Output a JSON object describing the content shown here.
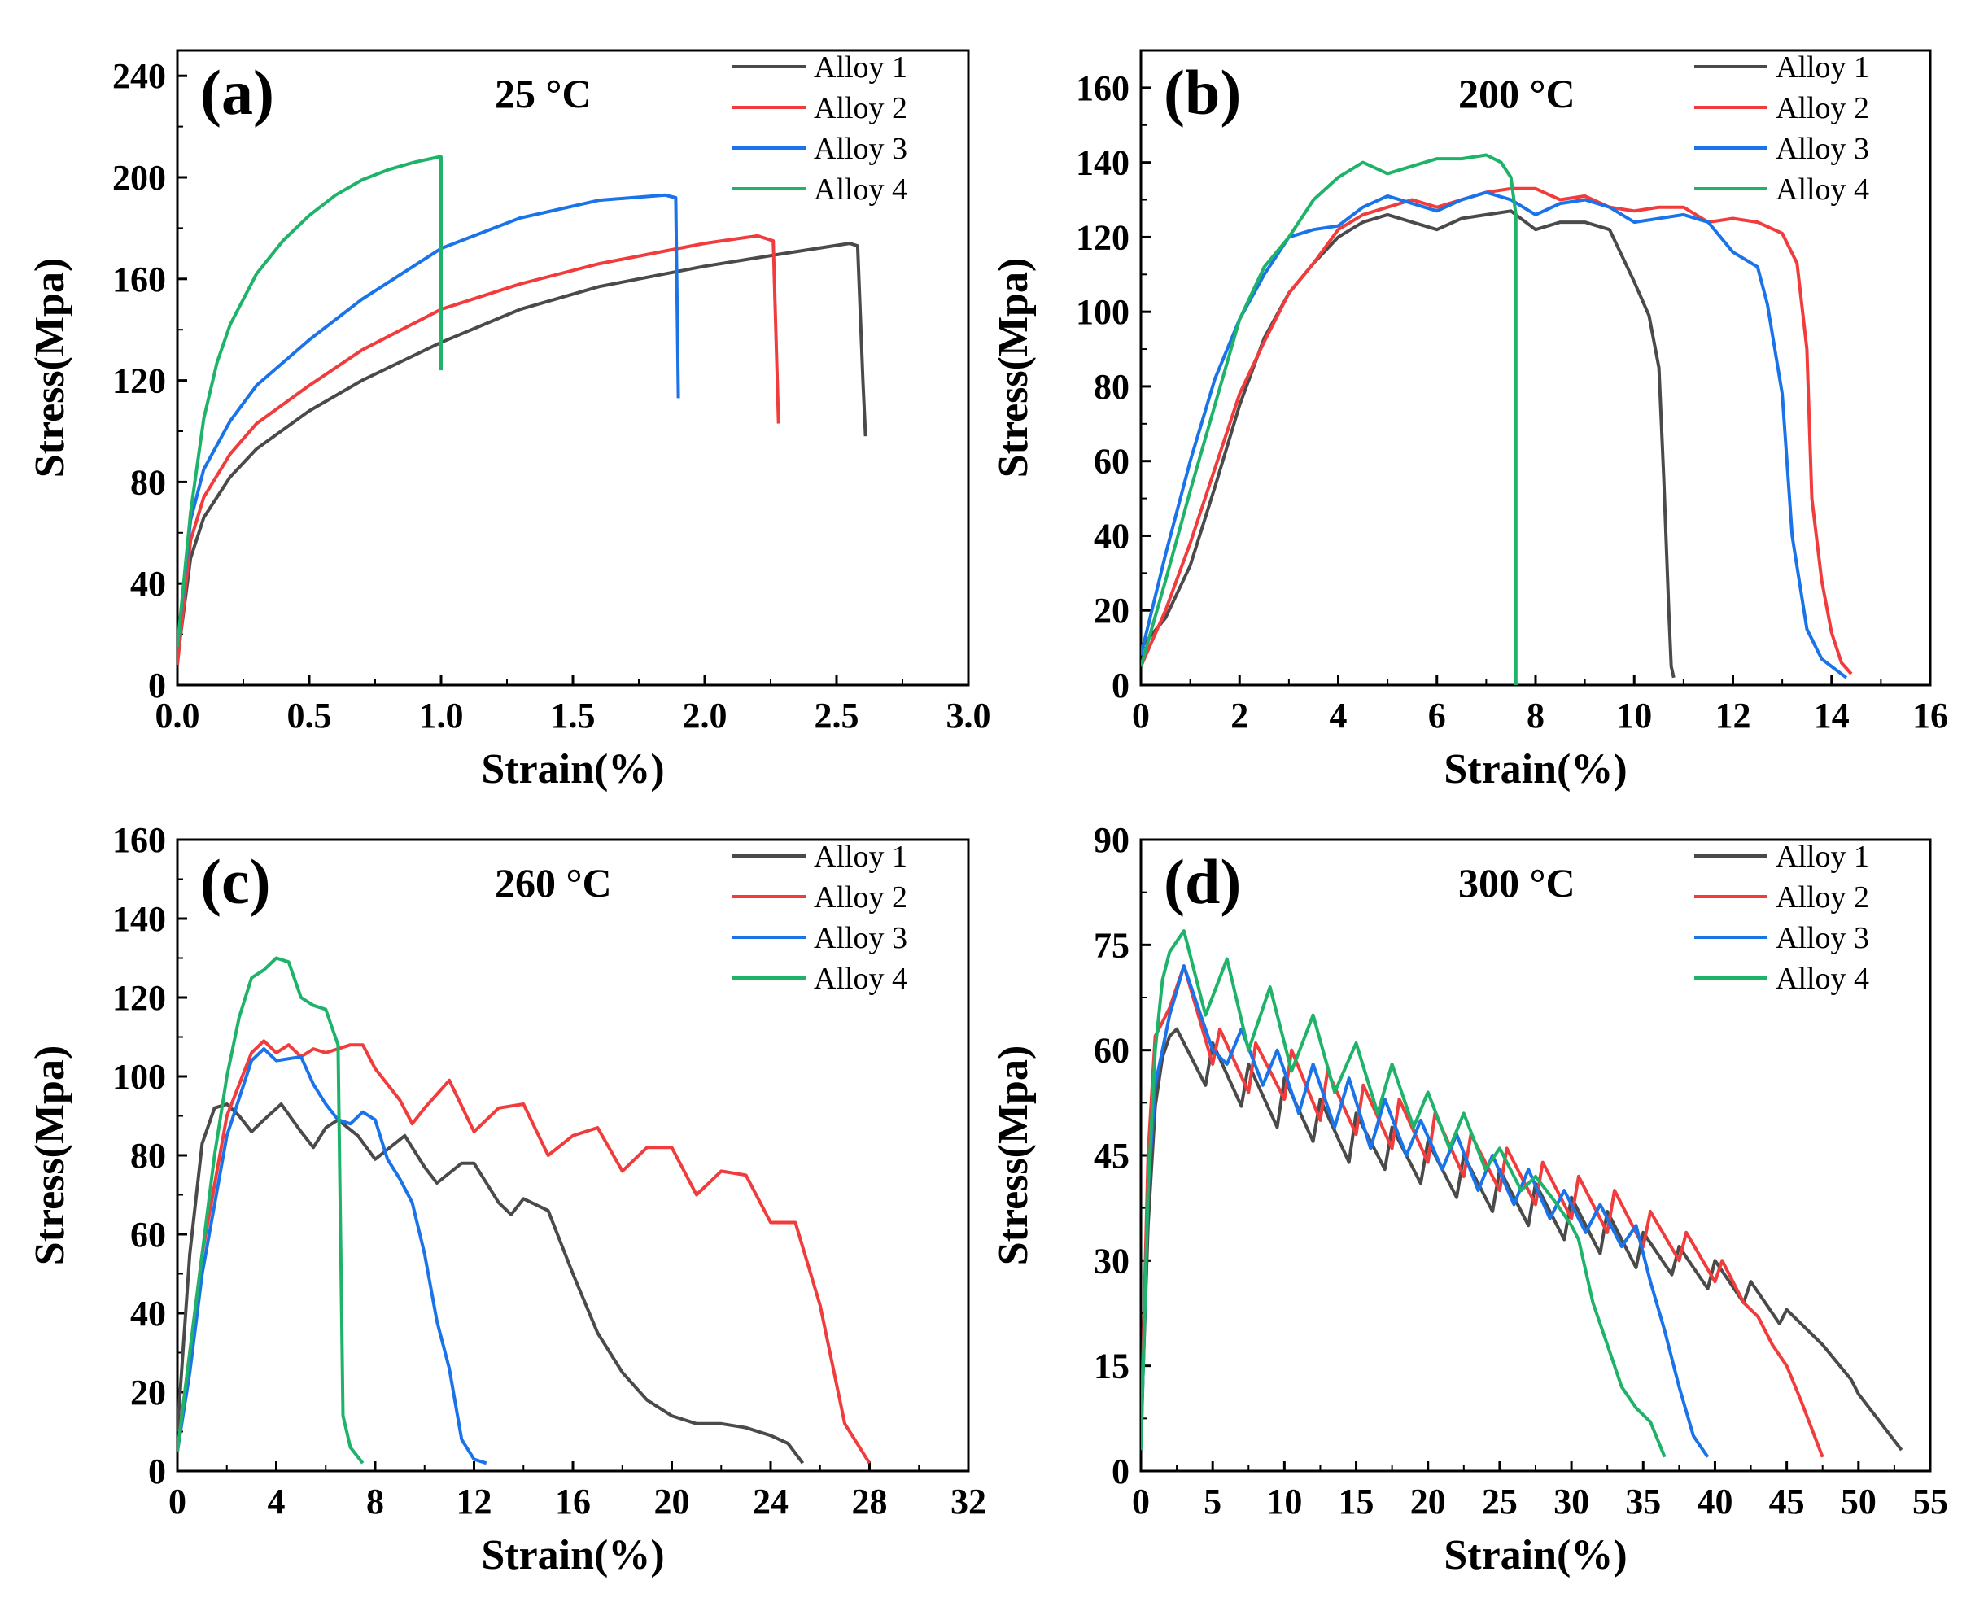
{
  "colors": {
    "Alloy 1": "#4a4a4a",
    "Alloy 2": "#f03c3c",
    "Alloy 3": "#1a73e8",
    "Alloy 4": "#1fb36a"
  },
  "chart_data": [
    {
      "type": "line",
      "panel_label": "(a)",
      "temperature": "25 °C",
      "xlabel": "Strain(%)",
      "ylabel": "Stress(Mpa)",
      "xlim": [
        0,
        3.0
      ],
      "ylim": [
        0,
        250
      ],
      "xticks": [
        "0.0",
        "0.5",
        "1.0",
        "1.5",
        "2.0",
        "2.5",
        "3.0"
      ],
      "yticks": [
        "0",
        "40",
        "80",
        "120",
        "160",
        "200",
        "240"
      ],
      "legend": "top-right",
      "series": [
        {
          "name": "Alloy 1",
          "x": [
            0,
            0.05,
            0.1,
            0.2,
            0.3,
            0.5,
            0.7,
            1.0,
            1.3,
            1.6,
            2.0,
            2.3,
            2.55,
            2.58,
            2.6,
            2.61
          ],
          "y": [
            10,
            50,
            66,
            82,
            93,
            108,
            120,
            135,
            148,
            157,
            165,
            170,
            174,
            173,
            120,
            98
          ]
        },
        {
          "name": "Alloy 2",
          "x": [
            0,
            0.05,
            0.1,
            0.2,
            0.3,
            0.5,
            0.7,
            1.0,
            1.3,
            1.6,
            2.0,
            2.2,
            2.26,
            2.28
          ],
          "y": [
            8,
            57,
            74,
            91,
            103,
            118,
            132,
            148,
            158,
            166,
            174,
            177,
            175,
            103
          ]
        },
        {
          "name": "Alloy 3",
          "x": [
            0,
            0.05,
            0.1,
            0.2,
            0.3,
            0.5,
            0.7,
            1.0,
            1.3,
            1.6,
            1.85,
            1.89,
            1.9
          ],
          "y": [
            15,
            65,
            85,
            104,
            118,
            136,
            152,
            172,
            184,
            191,
            193,
            192,
            113
          ]
        },
        {
          "name": "Alloy 4",
          "x": [
            0,
            0.05,
            0.1,
            0.15,
            0.2,
            0.3,
            0.4,
            0.5,
            0.6,
            0.7,
            0.8,
            0.9,
            0.99,
            1.0,
            1.0
          ],
          "y": [
            15,
            68,
            105,
            127,
            142,
            162,
            175,
            185,
            193,
            199,
            203,
            206,
            208,
            208,
            124
          ]
        }
      ]
    },
    {
      "type": "line",
      "panel_label": "(b)",
      "temperature": "200 °C",
      "xlabel": "Strain(%)",
      "ylabel": "Stress(Mpa)",
      "xlim": [
        0,
        16
      ],
      "ylim": [
        0,
        170
      ],
      "xticks": [
        "0",
        "2",
        "4",
        "6",
        "8",
        "10",
        "12",
        "14",
        "16"
      ],
      "yticks": [
        "0",
        "20",
        "40",
        "60",
        "80",
        "100",
        "120",
        "140",
        "160"
      ],
      "legend": "top-right",
      "series": [
        {
          "name": "Alloy 1",
          "x": [
            0,
            0.5,
            1.0,
            1.5,
            2,
            2.5,
            3,
            3.5,
            4,
            4.5,
            5,
            5.5,
            6,
            6.5,
            7,
            7.5,
            8,
            8.5,
            9,
            9.5,
            10,
            10.3,
            10.5,
            10.6,
            10.7,
            10.75,
            10.8
          ],
          "y": [
            10,
            18,
            32,
            53,
            75,
            93,
            105,
            113,
            120,
            124,
            126,
            124,
            122,
            125,
            126,
            127,
            122,
            124,
            124,
            122,
            108,
            99,
            85,
            55,
            20,
            5,
            2
          ]
        },
        {
          "name": "Alloy 2",
          "x": [
            0,
            0.5,
            1,
            1.5,
            2,
            2.5,
            3,
            3.5,
            4,
            4.5,
            5,
            5.5,
            6,
            7,
            7.5,
            8,
            8.5,
            9,
            9.5,
            10,
            10.5,
            11,
            11.5,
            12,
            12.5,
            13,
            13.3,
            13.5,
            13.6,
            13.8,
            14.0,
            14.2,
            14.4
          ],
          "y": [
            5,
            20,
            38,
            58,
            78,
            92,
            105,
            113,
            122,
            126,
            128,
            130,
            128,
            132,
            133,
            133,
            130,
            131,
            128,
            127,
            128,
            128,
            124,
            125,
            124,
            121,
            113,
            90,
            50,
            28,
            14,
            6,
            3
          ]
        },
        {
          "name": "Alloy 3",
          "x": [
            0,
            0.5,
            1,
            1.5,
            2,
            2.5,
            3,
            3.5,
            4,
            4.5,
            5,
            5.5,
            6,
            6.5,
            7,
            7.5,
            8,
            8.5,
            9,
            9.5,
            10,
            11,
            11.5,
            12,
            12.5,
            12.7,
            13.0,
            13.2,
            13.5,
            13.8,
            14.3
          ],
          "y": [
            8,
            35,
            60,
            82,
            98,
            110,
            120,
            122,
            123,
            128,
            131,
            129,
            127,
            130,
            132,
            130,
            126,
            129,
            130,
            128,
            124,
            126,
            124,
            116,
            112,
            102,
            78,
            40,
            15,
            7,
            2
          ]
        },
        {
          "name": "Alloy 4",
          "x": [
            0,
            0.5,
            1,
            1.5,
            2,
            2.5,
            3,
            3.5,
            4,
            4.5,
            5,
            5.5,
            6,
            6.5,
            7,
            7.3,
            7.5,
            7.6,
            7.6
          ],
          "y": [
            5,
            28,
            52,
            75,
            98,
            112,
            120,
            130,
            136,
            140,
            137,
            139,
            141,
            141,
            142,
            140,
            136,
            126,
            0
          ]
        }
      ]
    },
    {
      "type": "line",
      "panel_label": "(c)",
      "temperature": "260 °C",
      "xlabel": "Strain(%)",
      "ylabel": "Stress(Mpa)",
      "xlim": [
        0,
        32
      ],
      "ylim": [
        0,
        160
      ],
      "xticks": [
        "0",
        "4",
        "8",
        "12",
        "16",
        "20",
        "24",
        "28",
        "32"
      ],
      "yticks": [
        "0",
        "20",
        "40",
        "60",
        "80",
        "100",
        "120",
        "140",
        "160"
      ],
      "legend": "top-right",
      "series": [
        {
          "name": "Alloy 1",
          "x": [
            0,
            0.5,
            1,
            1.5,
            2,
            2.5,
            3,
            3.5,
            4.2,
            5,
            5.5,
            6,
            6.5,
            7.3,
            8,
            9.2,
            10,
            10.5,
            11.5,
            12,
            13,
            13.5,
            14,
            15,
            16,
            17,
            18,
            19,
            20,
            21,
            22,
            23,
            24,
            24.7,
            25.3
          ],
          "y": [
            10,
            55,
            83,
            92,
            93,
            90,
            86,
            89,
            93,
            86,
            82,
            87,
            89,
            85,
            79,
            85,
            77,
            73,
            78,
            78,
            68,
            65,
            69,
            66,
            50,
            35,
            25,
            18,
            14,
            12,
            12,
            11,
            9,
            7,
            2
          ]
        },
        {
          "name": "Alloy 2",
          "x": [
            0,
            0.5,
            1,
            2,
            3,
            3.5,
            4,
            4.5,
            5,
            5.5,
            6,
            7,
            7.5,
            8,
            9,
            9.5,
            10,
            11,
            12,
            13,
            14,
            15,
            16,
            17,
            18,
            19,
            20,
            21,
            22,
            23,
            24,
            25,
            26,
            27,
            28
          ],
          "y": [
            5,
            30,
            55,
            90,
            106,
            109,
            106,
            108,
            105,
            107,
            106,
            108,
            108,
            102,
            94,
            88,
            92,
            99,
            86,
            92,
            93,
            80,
            85,
            87,
            76,
            82,
            82,
            70,
            76,
            75,
            63,
            63,
            42,
            12,
            2
          ]
        },
        {
          "name": "Alloy 3",
          "x": [
            0,
            0.5,
            1,
            2,
            3,
            3.5,
            4,
            5,
            5.5,
            6,
            6.5,
            7,
            7.5,
            8,
            8.5,
            9,
            9.5,
            10,
            10.5,
            11,
            11.5,
            12,
            12.5
          ],
          "y": [
            5,
            25,
            50,
            85,
            104,
            107,
            104,
            105,
            98,
            93,
            89,
            88,
            91,
            89,
            79,
            74,
            68,
            55,
            38,
            26,
            8,
            3,
            2
          ]
        },
        {
          "name": "Alloy 4",
          "x": [
            0,
            0.5,
            1,
            1.5,
            2,
            2.5,
            3,
            3.5,
            4,
            4.5,
            5,
            5.5,
            6,
            6.5,
            6.6,
            6.7,
            7,
            7.5
          ],
          "y": [
            5,
            30,
            55,
            80,
            100,
            115,
            125,
            127,
            130,
            129,
            120,
            118,
            117,
            108,
            60,
            14,
            6,
            2
          ]
        }
      ]
    },
    {
      "type": "line",
      "panel_label": "(d)",
      "temperature": "300 °C",
      "xlabel": "Strain(%)",
      "ylabel": "Stress(Mpa)",
      "xlim": [
        0,
        55
      ],
      "ylim": [
        0,
        90
      ],
      "xticks": [
        "0",
        "5",
        "10",
        "15",
        "20",
        "25",
        "30",
        "35",
        "40",
        "45",
        "50",
        "55"
      ],
      "yticks": [
        "0",
        "15",
        "30",
        "45",
        "60",
        "75",
        "90"
      ],
      "legend": "top-right",
      "series": [
        {
          "name": "Alloy 1",
          "x": [
            0,
            0.5,
            1,
            1.5,
            2,
            2.5,
            4.5,
            5,
            7,
            7.5,
            9.5,
            10,
            12,
            12.5,
            14.5,
            15,
            17,
            17.5,
            19.5,
            20,
            22,
            22.5,
            24.5,
            25,
            27,
            27.5,
            29.5,
            30,
            32,
            32.5,
            34.5,
            35,
            37,
            37.5,
            39.5,
            40,
            42,
            42.5,
            44.5,
            45,
            47,
            47.5,
            49.5,
            50,
            51.5,
            53
          ],
          "y": [
            5,
            35,
            52,
            59,
            62,
            63,
            55,
            61,
            52,
            58,
            49,
            56,
            47,
            53,
            44,
            51,
            43,
            49,
            41,
            47,
            39,
            45,
            37,
            43,
            35,
            41,
            33,
            39,
            31,
            37,
            29,
            34,
            28,
            32,
            26,
            30,
            24,
            27,
            21,
            23,
            19,
            18,
            13,
            11,
            7,
            3
          ]
        },
        {
          "name": "Alloy 2",
          "x": [
            0,
            0.5,
            1,
            1.5,
            2,
            3,
            5,
            5.5,
            7.5,
            8,
            10,
            10.5,
            12.5,
            13,
            15,
            15.5,
            17.5,
            18,
            20,
            20.5,
            22.5,
            23,
            25,
            25.5,
            27.5,
            28,
            30,
            30.5,
            32.5,
            33,
            35,
            35.5,
            37.5,
            38,
            40,
            40.5,
            42,
            43,
            44,
            45,
            46,
            47.5
          ],
          "y": [
            5,
            45,
            62,
            64,
            66,
            72,
            58,
            63,
            54,
            61,
            53,
            60,
            50,
            57,
            48,
            55,
            46,
            53,
            44,
            51,
            42,
            48,
            40,
            46,
            38,
            44,
            36,
            42,
            34,
            40,
            32,
            37,
            30,
            34,
            27,
            30,
            24,
            22,
            18,
            15,
            10,
            2
          ]
        },
        {
          "name": "Alloy 3",
          "x": [
            0,
            0.5,
            1,
            2,
            3,
            5,
            6,
            7,
            8.5,
            9.5,
            11,
            12,
            13.5,
            14.5,
            16,
            17,
            18.5,
            19.5,
            21,
            22,
            23.5,
            24.5,
            26,
            27,
            28.5,
            29.5,
            31,
            32,
            33.5,
            34.5,
            35.5,
            36.5,
            37.5,
            38.5,
            39.5
          ],
          "y": [
            3,
            40,
            55,
            65,
            72,
            60,
            58,
            63,
            55,
            60,
            51,
            58,
            49,
            56,
            46,
            53,
            45,
            50,
            43,
            48,
            40,
            45,
            38,
            43,
            36,
            40,
            34,
            38,
            32,
            35,
            27,
            20,
            12,
            5,
            2
          ]
        },
        {
          "name": "Alloy 4",
          "x": [
            0,
            0.5,
            1,
            1.5,
            2,
            3,
            4.5,
            6,
            7.5,
            9,
            10.5,
            12,
            13.5,
            15,
            16.5,
            17.5,
            19,
            20,
            21.5,
            22.5,
            24,
            25,
            26.5,
            27.5,
            29,
            30,
            30.5,
            31.5,
            32.5,
            33.5,
            34.5,
            35.5,
            36.5
          ],
          "y": [
            3,
            40,
            60,
            70,
            74,
            77,
            65,
            73,
            60,
            69,
            57,
            65,
            54,
            61,
            51,
            58,
            49,
            54,
            46,
            51,
            43,
            46,
            40,
            42,
            38,
            35,
            33,
            24,
            18,
            12,
            9,
            7,
            2
          ]
        }
      ]
    }
  ]
}
